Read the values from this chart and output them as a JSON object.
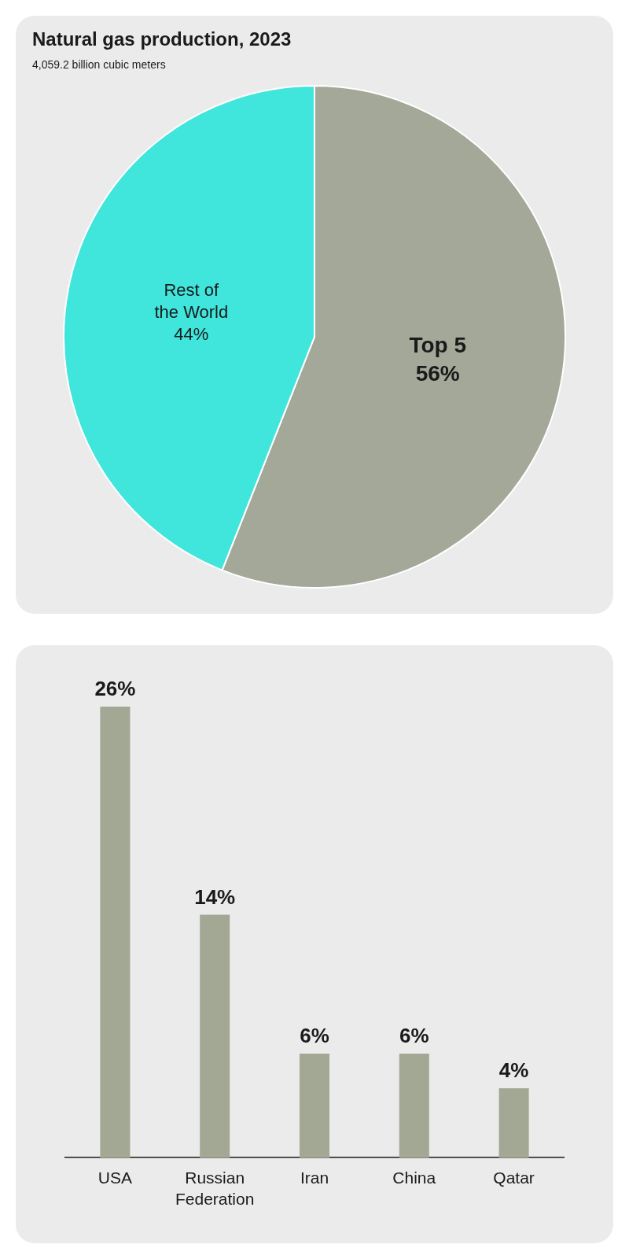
{
  "chart_data": [
    {
      "type": "pie",
      "title": "Natural gas production, 2023",
      "subtitle": "4,059.2 billion cubic meters",
      "categories": [
        "Top 5",
        "Rest of the World"
      ],
      "values": [
        56,
        44
      ],
      "colors": [
        "#a4a898",
        "#40e5dc"
      ],
      "value_labels": [
        "56%",
        "44%"
      ]
    },
    {
      "type": "bar",
      "categories": [
        "USA",
        "Russian Federation",
        "Iran",
        "China",
        "Qatar"
      ],
      "values": [
        26,
        14,
        6,
        6,
        4
      ],
      "color": "#a2a893",
      "value_labels": [
        "26%",
        "14%",
        "6%",
        "6%",
        "4%"
      ]
    }
  ]
}
